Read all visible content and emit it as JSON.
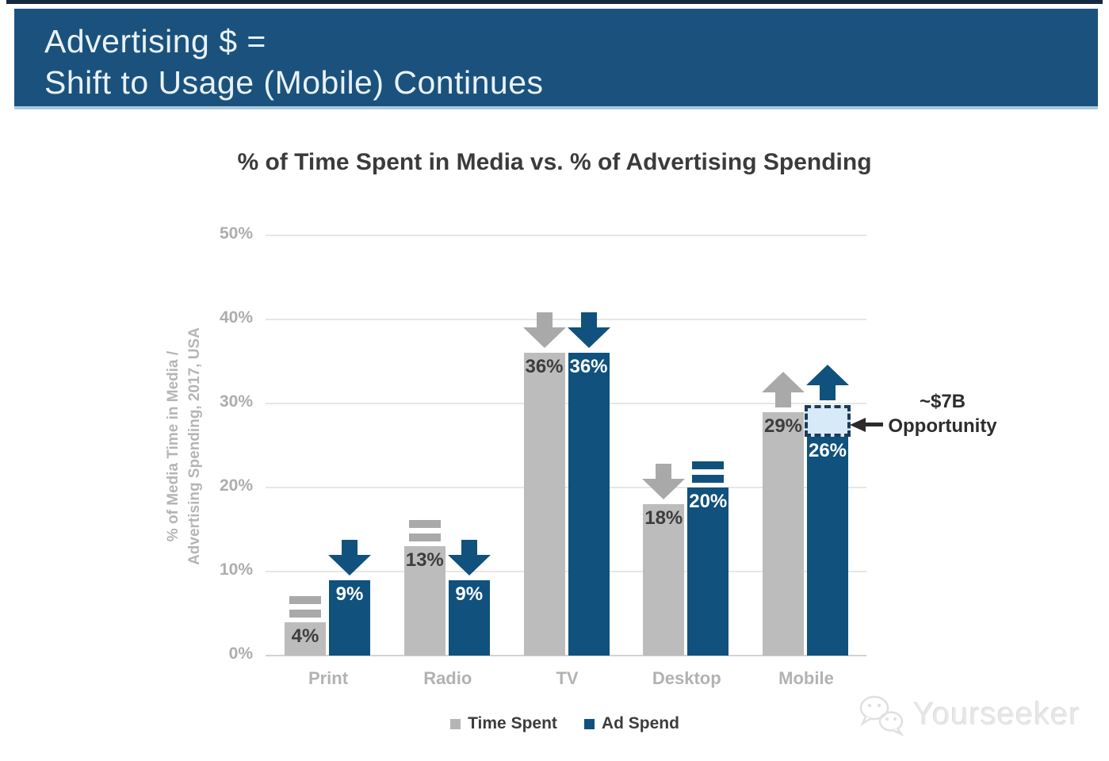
{
  "page": {
    "banner": {
      "line1": "Advertising $ =",
      "line2": "Shift to Usage (Mobile) Continues",
      "bg_color": "#1a527d"
    },
    "watermark": {
      "text": "Yourseeker"
    }
  },
  "chart_data": {
    "type": "bar",
    "title": "% of Time Spent in Media vs. % of Advertising Spending",
    "ylabel_line1": "% of Media Time in Media /",
    "ylabel_line2": "Advertising Spending, 2017, USA",
    "y_ticks": [
      "0%",
      "10%",
      "20%",
      "30%",
      "40%",
      "50%"
    ],
    "ylim": [
      0,
      50
    ],
    "grid": true,
    "legend_position": "bottom",
    "categories": [
      "Print",
      "Radio",
      "TV",
      "Desktop",
      "Mobile"
    ],
    "series": [
      {
        "name": "Time Spent",
        "color": "#bcbcbc",
        "icon_color": "#a9a9a9",
        "values": [
          4,
          13,
          36,
          18,
          29
        ],
        "labels": [
          "4%",
          "13%",
          "36%",
          "18%",
          "29%"
        ],
        "trends": [
          "flat",
          "flat",
          "down",
          "down",
          "up"
        ]
      },
      {
        "name": "Ad Spend",
        "color": "#10517d",
        "icon_color": "#10517d",
        "values": [
          9,
          9,
          36,
          20,
          26
        ],
        "labels": [
          "9%",
          "9%",
          "36%",
          "20%",
          "26%"
        ],
        "trends": [
          "down",
          "down",
          "down",
          "flat",
          "up"
        ]
      }
    ],
    "legend": [
      {
        "label": "Time Spent",
        "color": "#b5b5b5"
      },
      {
        "label": "Ad Spend",
        "color": "#10517d"
      }
    ],
    "annotation": {
      "line1": "~$7B",
      "line2": "Opportunity",
      "target": "Mobile Ad Spend gap",
      "gap_from_pct": 26,
      "gap_to_pct": 29.5,
      "box_fill": "#d7eaf7",
      "box_border": "#1c3c57"
    }
  }
}
